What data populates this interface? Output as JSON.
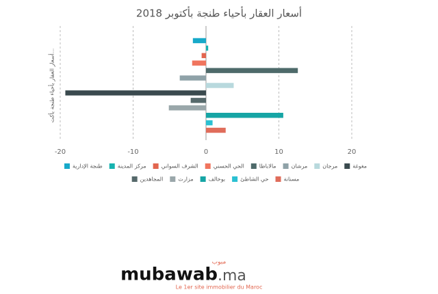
{
  "chart_data": {
    "type": "bar",
    "orientation": "horizontal",
    "title": "أسعار العقار بأحياء طنجة بأكتوبر 2018",
    "y_label": "أسعار العقار بأحياء طنجة بأكت...",
    "xlim": [
      -20,
      20
    ],
    "xticks": [
      -20,
      -10,
      0,
      10,
      20
    ],
    "grid": true,
    "series": [
      {
        "name": "طنجة الإدارية",
        "color": "#17a9c9",
        "values": [
          -1.8
        ]
      },
      {
        "name": "مركز المدينة",
        "color": "#17b3b0",
        "values": [
          0.3
        ]
      },
      {
        "name": "الشرف السواني",
        "color": "#e2664f",
        "values": [
          -0.6
        ]
      },
      {
        "name": "الحي الحسني",
        "color": "#f0755e",
        "values": [
          -1.9
        ]
      },
      {
        "name": "مالاباطا",
        "color": "#4e6a6a",
        "values": [
          12.6
        ]
      },
      {
        "name": "مرشان",
        "color": "#8fa2a8",
        "values": [
          -3.6
        ]
      },
      {
        "name": "مرجان",
        "color": "#b8d9dd",
        "values": [
          3.8
        ]
      },
      {
        "name": "مغوغة",
        "color": "#3a4a4e",
        "values": [
          -19.3
        ]
      },
      {
        "name": "المجاهدين",
        "color": "#56696b",
        "values": [
          -2.1
        ]
      },
      {
        "name": "مزارت",
        "color": "#9aa7aa",
        "values": [
          -5.1
        ]
      },
      {
        "name": "بوخالف",
        "color": "#16a5a5",
        "values": [
          10.6
        ]
      },
      {
        "name": "حي الشاطئ",
        "color": "#2bc0d2",
        "values": [
          0.9
        ]
      },
      {
        "name": "مسنانة",
        "color": "#e06d5b",
        "values": [
          2.7
        ]
      }
    ]
  },
  "branding": {
    "logo_arabic": "مبوب",
    "logo": "mubawab",
    "logo_domain": ".ma",
    "tagline": "Le 1er site immobilier du Maroc"
  }
}
